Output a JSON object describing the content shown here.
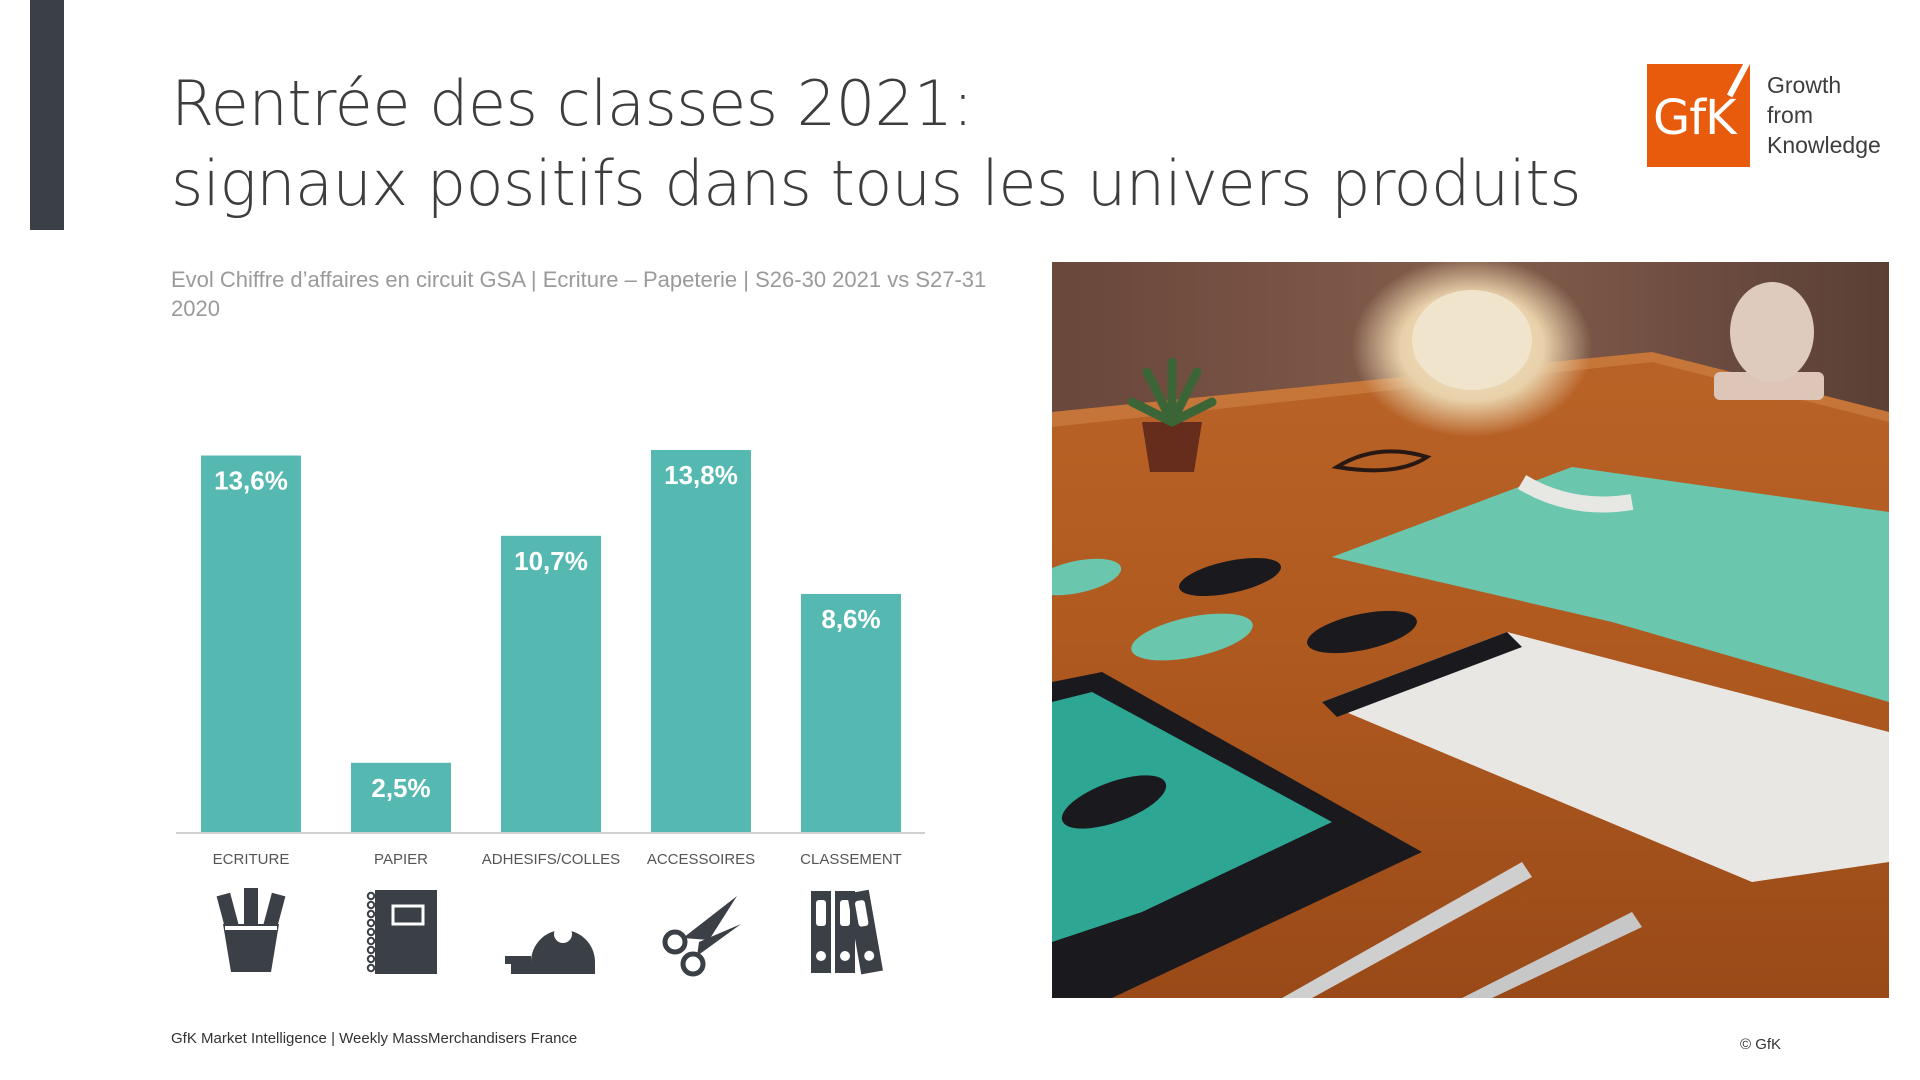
{
  "slide": {
    "title_line1": "Rentrée des classes 2021:",
    "title_line2": "signaux positifs dans tous les univers produits",
    "subtitle": "Evol Chiffre d’affaires en circuit GSA | Ecriture – Papeterie | S26-30 2021 vs S27-31 2020",
    "footer_left": "GfK Market Intelligence | Weekly MassMerchandisers France",
    "footer_right": "© GfK"
  },
  "logo": {
    "brand": "GfK",
    "tagline_1": "Growth",
    "tagline_2": "from",
    "tagline_3": "Knowledge",
    "color": "#e85a0c"
  },
  "colors": {
    "bar": "#55b9b2",
    "icon": "#3b4046",
    "accent_bar": "#3b4046"
  },
  "chart_data": {
    "type": "bar",
    "categories": [
      "ECRITURE",
      "PAPIER",
      "ADHESIFS/COLLES",
      "ACCESSOIRES",
      "CLASSEMENT"
    ],
    "values": [
      13.6,
      2.5,
      10.7,
      13.8,
      8.6
    ],
    "data_labels": [
      "13,6%",
      "2,5%",
      "10,7%",
      "13,8%",
      "8,6%"
    ],
    "category_icons": [
      "pen-cup-icon",
      "notebook-icon",
      "tape-dispenser-icon",
      "scissors-icon",
      "binders-icon"
    ],
    "ylim": [
      0,
      13.8
    ],
    "grid": false,
    "xlabel": "",
    "ylabel": ""
  }
}
